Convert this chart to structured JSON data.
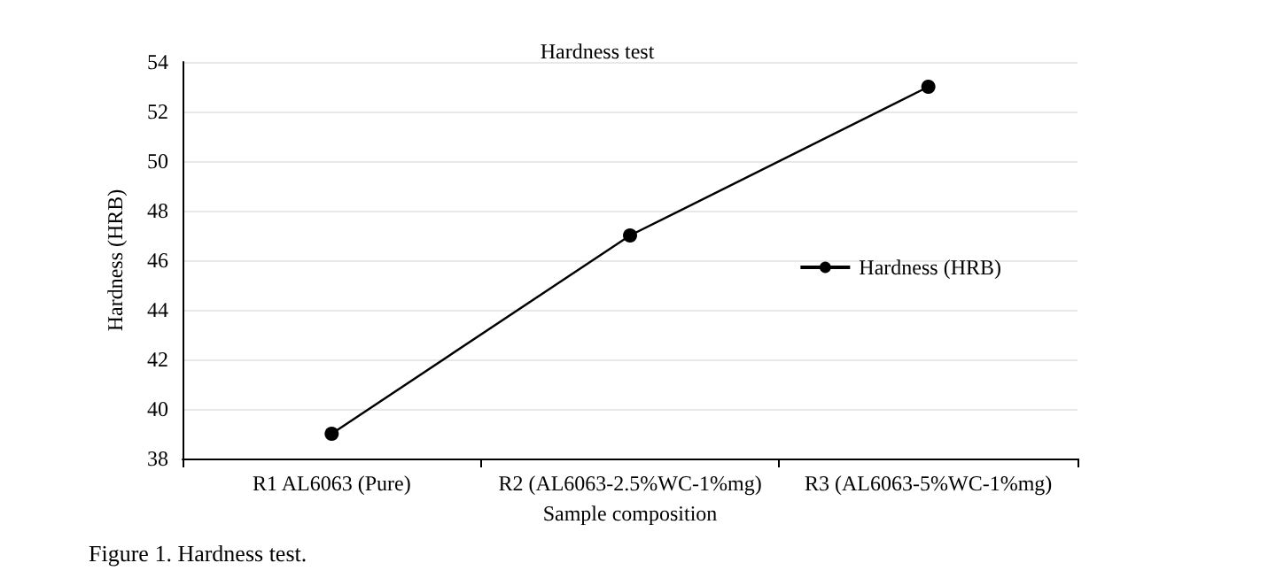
{
  "chart_data": {
    "type": "line",
    "title": "Hardness test",
    "xlabel": "Sample composition",
    "ylabel": "Hardness (HRB)",
    "categories": [
      "R1 AL6063 (Pure)",
      "R2 (AL6063-2.5%WC-1%mg)",
      "R3 (AL6063-5%WC-1%mg)"
    ],
    "series": [
      {
        "name": "Hardness (HRB)",
        "color": "#000000",
        "values": [
          39,
          47,
          53
        ]
      }
    ],
    "ylim": [
      38,
      54
    ],
    "yticks": [
      38,
      40,
      42,
      44,
      46,
      48,
      50,
      52,
      54
    ],
    "grid": "y",
    "legend": "right",
    "marker": "circle",
    "line_style": "solid",
    "annotations": [
      "Figure 1. Hardness test."
    ]
  }
}
